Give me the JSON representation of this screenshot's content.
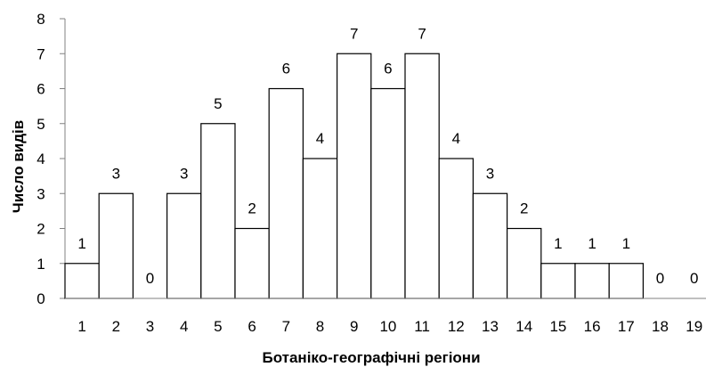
{
  "chart_data": {
    "type": "bar",
    "title": "",
    "xlabel": "Ботаніко-географічні регіони",
    "ylabel": "Число видів",
    "categories": [
      "1",
      "2",
      "3",
      "4",
      "5",
      "6",
      "7",
      "8",
      "9",
      "10",
      "11",
      "12",
      "13",
      "14",
      "15",
      "16",
      "17",
      "18",
      "19"
    ],
    "values": [
      1,
      3,
      0,
      3,
      5,
      2,
      6,
      4,
      7,
      6,
      7,
      4,
      3,
      2,
      1,
      1,
      1,
      0,
      0
    ],
    "data_labels": [
      "1",
      "3",
      "0",
      "3",
      "5",
      "2",
      "6",
      "4",
      "7",
      "6",
      "7",
      "4",
      "3",
      "2",
      "1",
      "1",
      "1",
      "0",
      "0"
    ],
    "ylim": [
      0,
      8
    ],
    "yticks": [
      0,
      1,
      2,
      3,
      4,
      5,
      6,
      7,
      8
    ],
    "grid": false,
    "legend": "none",
    "bar_fill": "#ffffff",
    "bar_stroke": "#000000",
    "axis_color": "#808080"
  }
}
